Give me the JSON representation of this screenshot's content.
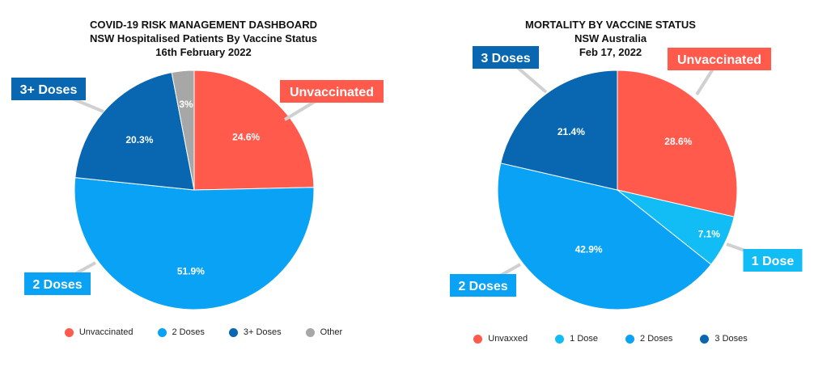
{
  "colors": {
    "red": "#FF5A4B",
    "lightblue": "#0AA2F5",
    "darkblue": "#0867B0",
    "gray": "#A7A7A7",
    "cyan": "#12BDF6",
    "leader": "#D0D0D0"
  },
  "chart_data": [
    {
      "type": "pie",
      "title": "COVID-19 RISK MANAGEMENT DASHBOARD",
      "subtitle": "NSW Hospitalised Patients By Vaccine Status",
      "date": "16th February 2022",
      "slices": [
        {
          "key": "unvaccinated",
          "category": "Unvaccinated",
          "legend": "Unvaccinated",
          "value": 24.6,
          "label": "24.6%",
          "color": "#FF5A4B"
        },
        {
          "key": "2-doses",
          "category": "2 Doses",
          "legend": "2 Doses",
          "value": 51.9,
          "label": "51.9%",
          "color": "#0AA2F5"
        },
        {
          "key": "3plus-doses",
          "category": "3+ Doses",
          "legend": "3+ Doses",
          "value": 20.3,
          "label": "20.3%",
          "color": "#0867B0"
        },
        {
          "key": "other",
          "category": "",
          "legend": "Other",
          "value": 3,
          "label": "3%",
          "color": "#A7A7A7"
        }
      ],
      "legend_position": "bottom"
    },
    {
      "type": "pie",
      "title": "MORTALITY BY VACCINE STATUS",
      "subtitle": "NSW Australia",
      "date": "Feb 17, 2022",
      "slices": [
        {
          "key": "unvaxxed",
          "category": "Unvaccinated",
          "legend": "Unvaxxed",
          "value": 28.6,
          "label": "28.6%",
          "color": "#FF5A4B"
        },
        {
          "key": "1-dose",
          "category": "1 Dose",
          "legend": "1 Dose",
          "value": 7.1,
          "label": "7.1%",
          "color": "#12BDF6"
        },
        {
          "key": "2-doses",
          "category": "2 Doses",
          "legend": "2 Doses",
          "value": 42.9,
          "label": "42.9%",
          "color": "#0AA2F5"
        },
        {
          "key": "3-doses",
          "category": "3 Doses",
          "legend": "3 Doses",
          "value": 21.4,
          "label": "21.4%",
          "color": "#0867B0"
        }
      ],
      "legend_position": "bottom"
    }
  ]
}
